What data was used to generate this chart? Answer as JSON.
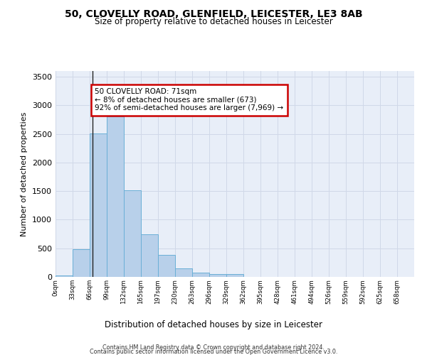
{
  "title_line1": "50, CLOVELLY ROAD, GLENFIELD, LEICESTER, LE3 8AB",
  "title_line2": "Size of property relative to detached houses in Leicester",
  "xlabel": "Distribution of detached houses by size in Leicester",
  "ylabel": "Number of detached properties",
  "bin_labels": [
    "0sqm",
    "33sqm",
    "66sqm",
    "99sqm",
    "132sqm",
    "165sqm",
    "197sqm",
    "230sqm",
    "263sqm",
    "296sqm",
    "329sqm",
    "362sqm",
    "395sqm",
    "428sqm",
    "461sqm",
    "494sqm",
    "526sqm",
    "559sqm",
    "592sqm",
    "625sqm",
    "658sqm"
  ],
  "bar_values": [
    20,
    480,
    2510,
    2810,
    1515,
    750,
    390,
    145,
    70,
    55,
    55,
    0,
    0,
    0,
    0,
    0,
    0,
    0,
    0,
    0,
    0
  ],
  "bar_color": "#b8d0ea",
  "bar_edge_color": "#6aafd6",
  "annotation_text": "50 CLOVELLY ROAD: 71sqm\n← 8% of detached houses are smaller (673)\n92% of semi-detached houses are larger (7,969) →",
  "annotation_box_color": "#ffffff",
  "annotation_border_color": "#cc0000",
  "ylim": [
    0,
    3600
  ],
  "yticks": [
    0,
    500,
    1000,
    1500,
    2000,
    2500,
    3000,
    3500
  ],
  "grid_color": "#d0d8e8",
  "background_color": "#e8eef8",
  "footer_line1": "Contains HM Land Registry data © Crown copyright and database right 2024.",
  "footer_line2": "Contains public sector information licensed under the Open Government Licence v3.0."
}
